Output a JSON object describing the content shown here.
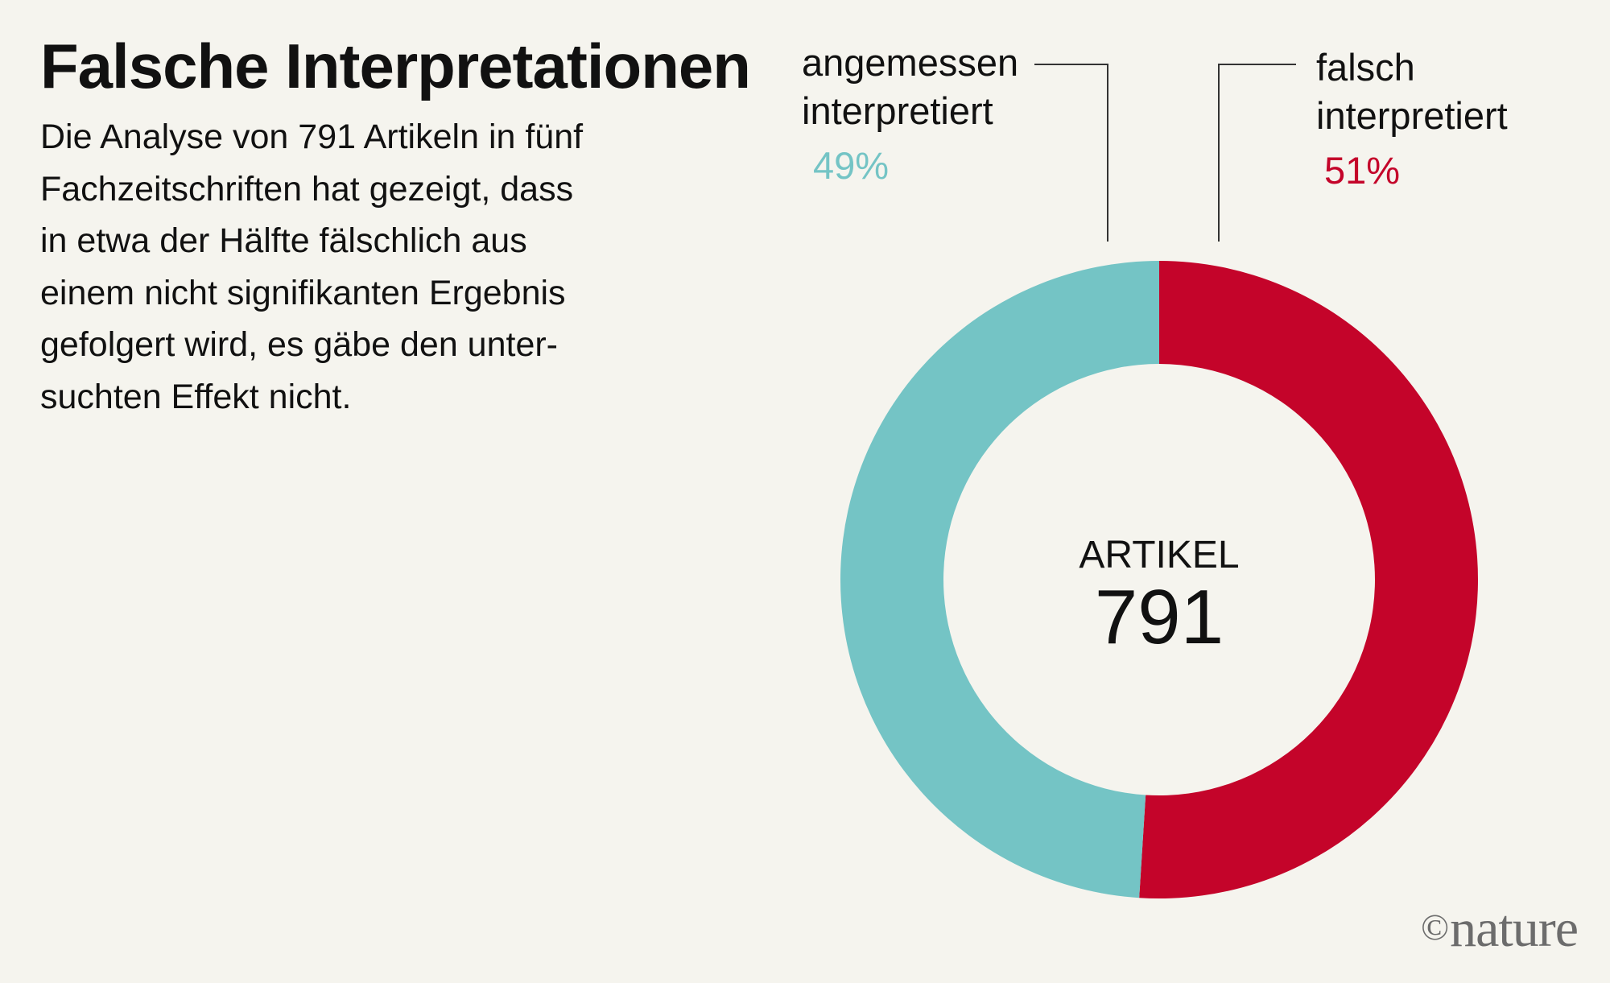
{
  "title": "Falsche Interpretationen",
  "description_lines": [
    "Die Analyse von 791 Artikeln in fünf",
    "Fachzeitschriften hat gezeigt, dass",
    "in etwa der Hälfte fälschlich aus",
    "einem nicht signifikanten Ergebnis",
    "gefolgert wird, es gäbe den unter-",
    "suchten Effekt nicht."
  ],
  "brand": {
    "copyright": "©",
    "name": "nature"
  },
  "chart_data": {
    "type": "pie",
    "variant": "donut",
    "center_caption": "ARTIKEL",
    "center_value": "791",
    "slices": [
      {
        "name_lines": [
          "falsch",
          "interpretiert"
        ],
        "value": 51,
        "label": "51%",
        "color": "#c4042a"
      },
      {
        "name_lines": [
          "angemessen",
          "interpretiert"
        ],
        "value": 49,
        "label": "49%",
        "color": "#74c4c5"
      }
    ],
    "start": "top",
    "direction": "clockwise"
  }
}
